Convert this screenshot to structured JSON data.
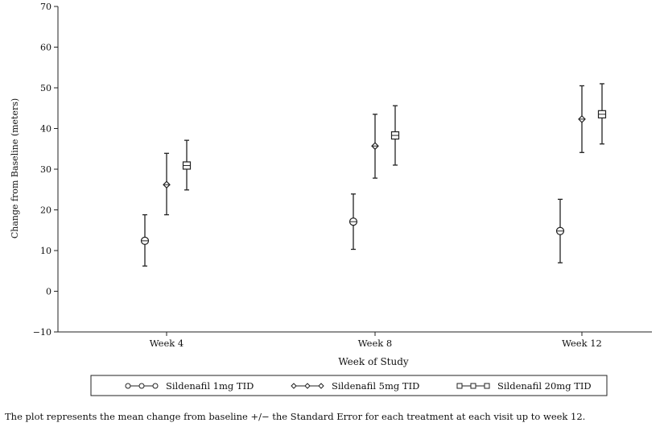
{
  "chart_data": {
    "type": "scatter",
    "title": "",
    "xlabel": "Week of Study",
    "ylabel": "Change from Baseline (meters)",
    "ylim": [
      -10,
      70
    ],
    "yticks": [
      -10,
      0,
      10,
      20,
      30,
      40,
      50,
      60,
      70
    ],
    "categories": [
      "Week 4",
      "Week 8",
      "Week 12"
    ],
    "grid": false,
    "legend_position": "bottom",
    "error_bars": "standard error",
    "series": [
      {
        "name": "Sildenafil 1mg TID",
        "marker": "circle-line",
        "values": [
          12.4,
          17.1,
          14.8
        ],
        "lower": [
          6.2,
          10.3,
          7.0
        ],
        "upper": [
          18.8,
          23.9,
          22.6
        ]
      },
      {
        "name": "Sildenafil 5mg TID",
        "marker": "diamond",
        "values": [
          26.2,
          35.7,
          42.3
        ],
        "lower": [
          18.8,
          27.8,
          34.1
        ],
        "upper": [
          33.9,
          43.5,
          50.5
        ]
      },
      {
        "name": "Sildenafil 20mg TID",
        "marker": "square",
        "values": [
          30.9,
          38.3,
          43.5
        ],
        "lower": [
          24.9,
          31.0,
          36.2
        ],
        "upper": [
          37.1,
          45.6,
          51.0
        ]
      }
    ]
  },
  "caption": "The plot represents the mean change from baseline +/− the Standard Error for each treatment at each visit up to week 12."
}
